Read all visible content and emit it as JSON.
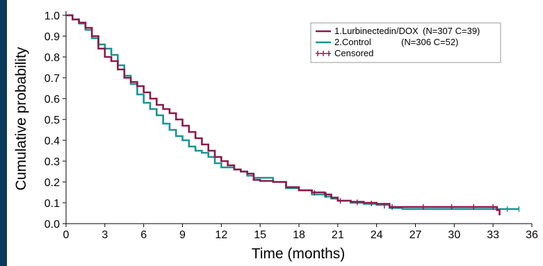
{
  "chart_data": {
    "type": "line",
    "subtype": "kaplan-meier",
    "title": "",
    "xlabel": "Time (months)",
    "ylabel": "Cumulative probability",
    "xlim": [
      0,
      36
    ],
    "ylim": [
      0,
      1.0
    ],
    "xticks": [
      0,
      3,
      6,
      9,
      12,
      15,
      18,
      21,
      24,
      27,
      30,
      33,
      36
    ],
    "yticks": [
      0.0,
      0.1,
      0.2,
      0.3,
      0.4,
      0.5,
      0.6,
      0.7,
      0.8,
      0.9,
      1.0
    ],
    "ytick_labels": [
      "0.0",
      "0.1",
      "0.2",
      "0.3",
      "0.4",
      "0.5",
      "0.6",
      "0.7",
      "0.8",
      "0.9",
      "1.0"
    ],
    "grid": false,
    "legend_position": "top-right",
    "series": [
      {
        "name": "1.Lurbinectedin/DOX (N=307 C=39)",
        "legend_name": "1.Lurbinectedin/DOX",
        "legend_stats": "(N=307 C=39)",
        "color": "#8b1a4a",
        "points": [
          [
            0,
            1.0
          ],
          [
            0.5,
            0.98
          ],
          [
            1.0,
            0.965
          ],
          [
            1.5,
            0.94
          ],
          [
            2.0,
            0.9
          ],
          [
            2.5,
            0.84
          ],
          [
            3.0,
            0.8
          ],
          [
            3.5,
            0.78
          ],
          [
            4.0,
            0.74
          ],
          [
            4.5,
            0.7
          ],
          [
            5.0,
            0.68
          ],
          [
            5.5,
            0.66
          ],
          [
            6.0,
            0.63
          ],
          [
            6.5,
            0.6
          ],
          [
            7.0,
            0.57
          ],
          [
            7.5,
            0.55
          ],
          [
            8.0,
            0.53
          ],
          [
            8.5,
            0.5
          ],
          [
            9.0,
            0.47
          ],
          [
            9.5,
            0.44
          ],
          [
            10.0,
            0.41
          ],
          [
            10.5,
            0.38
          ],
          [
            11.0,
            0.35
          ],
          [
            11.5,
            0.32
          ],
          [
            12.0,
            0.3
          ],
          [
            12.5,
            0.28
          ],
          [
            13.0,
            0.26
          ],
          [
            13.5,
            0.25
          ],
          [
            14.0,
            0.24
          ],
          [
            14.5,
            0.21
          ],
          [
            15.0,
            0.205
          ],
          [
            16.0,
            0.2
          ],
          [
            17.0,
            0.175
          ],
          [
            18.0,
            0.16
          ],
          [
            19.0,
            0.15
          ],
          [
            20.0,
            0.14
          ],
          [
            20.5,
            0.125
          ],
          [
            21.0,
            0.11
          ],
          [
            22.0,
            0.105
          ],
          [
            23.0,
            0.1
          ],
          [
            24.0,
            0.095
          ],
          [
            25.0,
            0.08
          ],
          [
            26.0,
            0.08
          ],
          [
            27.0,
            0.08
          ],
          [
            30.0,
            0.08
          ],
          [
            33.0,
            0.08
          ],
          [
            33.3,
            0.065
          ],
          [
            33.5,
            0.04
          ]
        ],
        "censored_x": [
          19.2,
          20.1,
          21.2,
          22.5,
          23.6,
          24.6,
          25.2,
          27.6,
          29.8,
          31.5,
          33.0
        ]
      },
      {
        "name": "2.Control (N=306 C=52)",
        "legend_name": "2.Control",
        "legend_stats": "(N=306 C=52)",
        "color": "#1a9494",
        "points": [
          [
            0,
            1.0
          ],
          [
            0.5,
            0.98
          ],
          [
            1.0,
            0.96
          ],
          [
            1.5,
            0.93
          ],
          [
            2.0,
            0.89
          ],
          [
            2.5,
            0.86
          ],
          [
            3.0,
            0.84
          ],
          [
            3.5,
            0.81
          ],
          [
            4.0,
            0.76
          ],
          [
            4.5,
            0.71
          ],
          [
            5.0,
            0.67
          ],
          [
            5.5,
            0.62
          ],
          [
            6.0,
            0.58
          ],
          [
            6.5,
            0.55
          ],
          [
            7.0,
            0.52
          ],
          [
            7.5,
            0.48
          ],
          [
            8.0,
            0.45
          ],
          [
            8.5,
            0.42
          ],
          [
            9.0,
            0.4
          ],
          [
            9.5,
            0.37
          ],
          [
            10.0,
            0.35
          ],
          [
            10.5,
            0.34
          ],
          [
            11.0,
            0.32
          ],
          [
            11.5,
            0.29
          ],
          [
            12.0,
            0.27
          ],
          [
            12.5,
            0.27
          ],
          [
            13.0,
            0.26
          ],
          [
            13.5,
            0.25
          ],
          [
            14.0,
            0.23
          ],
          [
            14.5,
            0.22
          ],
          [
            15.0,
            0.22
          ],
          [
            16.0,
            0.2
          ],
          [
            17.0,
            0.17
          ],
          [
            18.0,
            0.16
          ],
          [
            19.0,
            0.14
          ],
          [
            20.0,
            0.13
          ],
          [
            20.5,
            0.12
          ],
          [
            21.0,
            0.11
          ],
          [
            22.0,
            0.1
          ],
          [
            23.0,
            0.095
          ],
          [
            24.0,
            0.09
          ],
          [
            25.0,
            0.075
          ],
          [
            26.0,
            0.07
          ],
          [
            27.0,
            0.07
          ],
          [
            30.0,
            0.07
          ],
          [
            33.0,
            0.07
          ],
          [
            35.0,
            0.07
          ]
        ],
        "censored_x": [
          34.1,
          35.0
        ]
      }
    ],
    "legend_censored_label": "Censored"
  }
}
